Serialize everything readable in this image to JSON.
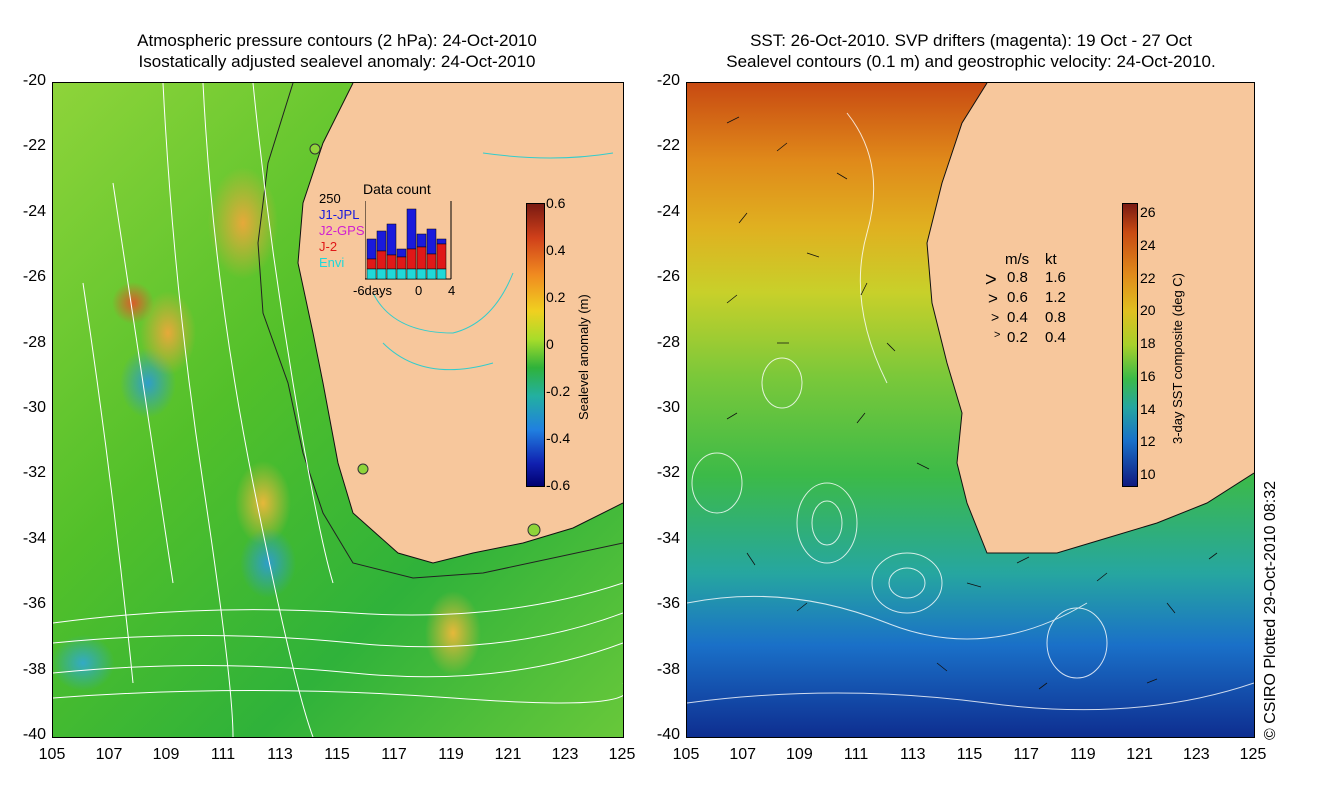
{
  "left_panel": {
    "title_line1": "Atmospheric pressure contours (2 hPa): 24-Oct-2010",
    "title_line2": "Isostatically adjusted sealevel anomaly: 24-Oct-2010",
    "y_ticks": [
      "-20",
      "-22",
      "-24",
      "-26",
      "-28",
      "-30",
      "-32",
      "-34",
      "-36",
      "-38",
      "-40"
    ],
    "x_ticks": [
      "105",
      "107",
      "109",
      "111",
      "113",
      "115",
      "117",
      "119",
      "121",
      "123",
      "125"
    ],
    "colorbar": {
      "label": "Sealevel anomaly (m)",
      "ticks": [
        "0.6",
        "0.4",
        "0.2",
        "0",
        "-0.2",
        "-0.4",
        "-0.6"
      ]
    },
    "histogram": {
      "title": "Data count",
      "ymax_label": "250",
      "x_labels": [
        "-6days",
        "0",
        "4"
      ],
      "legend": [
        {
          "label": "J1-JPL",
          "color": "#1a1adc"
        },
        {
          "label": "J2-GPS",
          "color": "#d020d0"
        },
        {
          "label": "J-2",
          "color": "#e01818"
        },
        {
          "label": "Envi",
          "color": "#20d8d8"
        }
      ]
    }
  },
  "right_panel": {
    "title_line1": "SST: 26-Oct-2010. SVP drifters (magenta): 19 Oct - 27 Oct",
    "title_line2": "Sealevel contours (0.1 m) and geostrophic velocity: 24-Oct-2010.",
    "y_ticks": [
      "-20",
      "-22",
      "-24",
      "-26",
      "-28",
      "-30",
      "-32",
      "-34",
      "-36",
      "-38",
      "-40"
    ],
    "x_ticks": [
      "105",
      "107",
      "109",
      "111",
      "113",
      "115",
      "117",
      "119",
      "121",
      "123",
      "125"
    ],
    "colorbar": {
      "label": "3-day SST composite (deg C)",
      "ticks": [
        "26",
        "24",
        "22",
        "20",
        "18",
        "16",
        "14",
        "12",
        "10"
      ]
    },
    "velocity_legend": {
      "header_ms": "m/s",
      "header_kt": "kt",
      "rows": [
        {
          "ms": "0.8",
          "kt": "1.6"
        },
        {
          "ms": "0.6",
          "kt": "1.2"
        },
        {
          "ms": "0.4",
          "kt": "0.8"
        },
        {
          "ms": "0.2",
          "kt": "0.4"
        }
      ]
    }
  },
  "copyright": "© CSIRO Plotted 29-Oct-2010 08:32",
  "colors": {
    "land": "#f7c79c",
    "contour": "#ffffff",
    "coast": "#111111",
    "isobath": "#33cccc"
  }
}
